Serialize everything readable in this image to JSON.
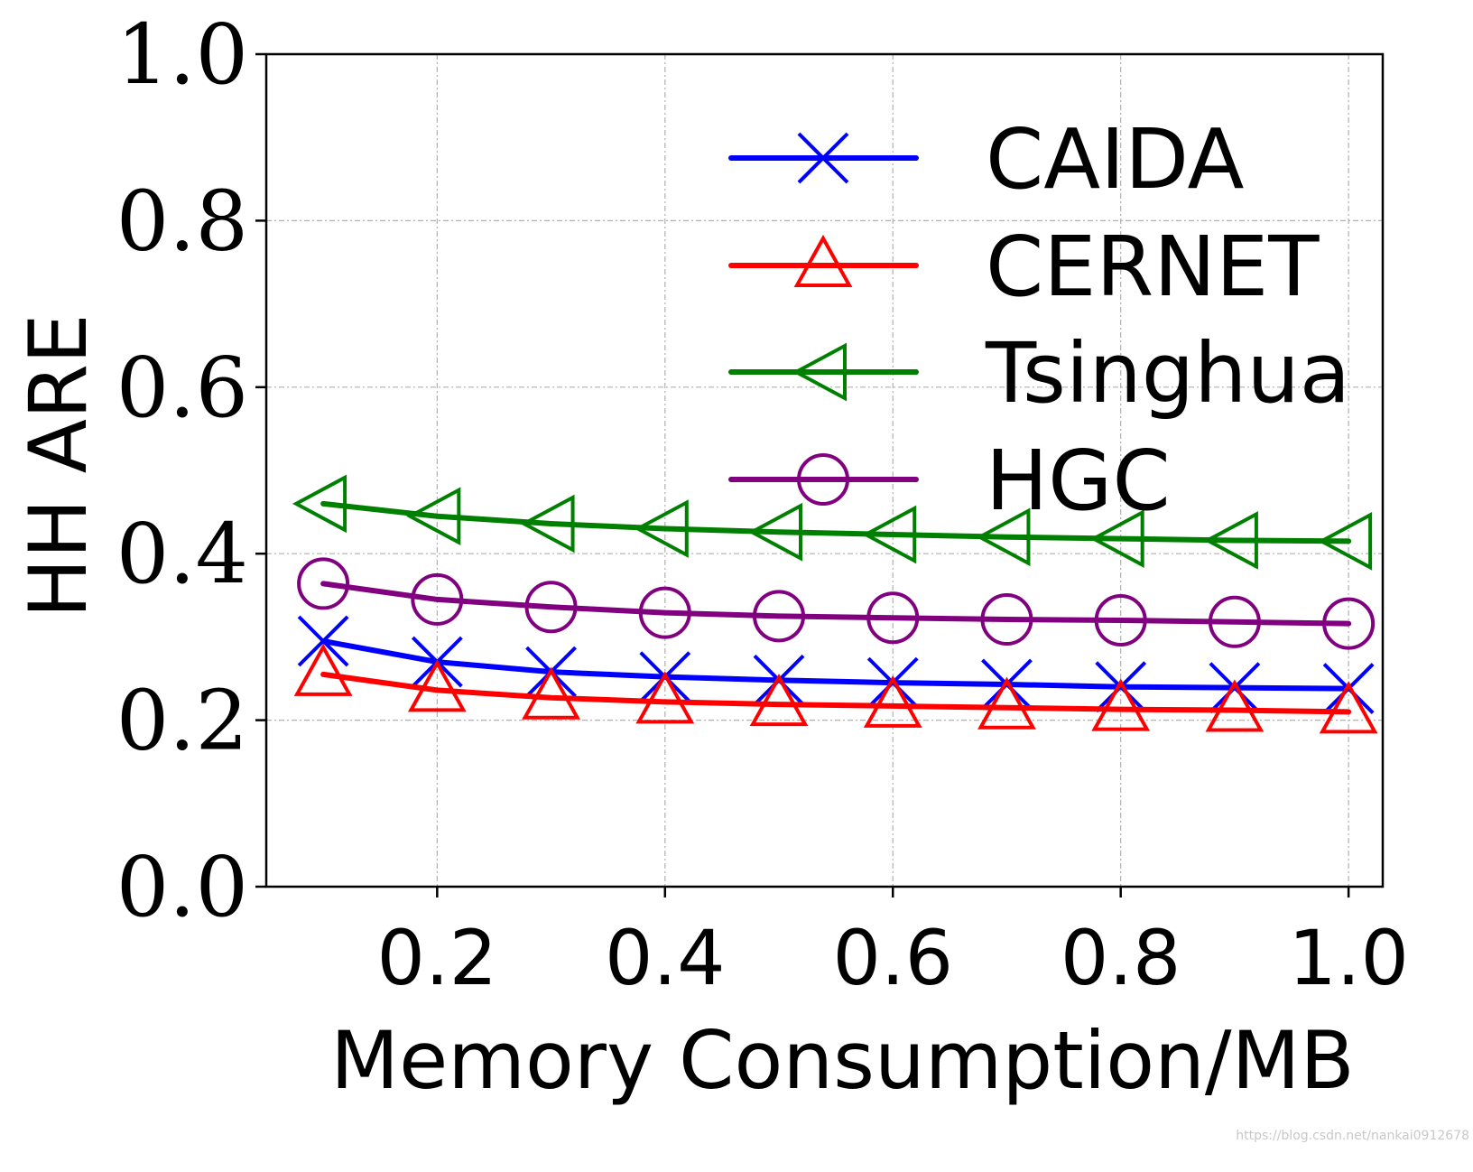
{
  "chart_data": {
    "type": "line",
    "xlabel": "Memory Consumption/MB",
    "ylabel": "HH ARE",
    "xlim": [
      0.05,
      1.03
    ],
    "ylim": [
      0.0,
      1.0
    ],
    "xticks": [
      "0.2",
      "0.4",
      "0.6",
      "0.8",
      "1.0"
    ],
    "yticks": [
      "0.0",
      "0.2",
      "0.4",
      "0.6",
      "0.8",
      "1.0"
    ],
    "grid": true,
    "legend_position": "top-right",
    "x": [
      0.1,
      0.2,
      0.3,
      0.4,
      0.5,
      0.6,
      0.7,
      0.8,
      0.9,
      1.0
    ],
    "series": [
      {
        "name": "CAIDA",
        "color": "#0000ff",
        "marker": "x",
        "values": [
          0.295,
          0.27,
          0.258,
          0.252,
          0.248,
          0.245,
          0.243,
          0.24,
          0.239,
          0.238
        ]
      },
      {
        "name": "CERNET",
        "color": "#ff0000",
        "marker": "triangle-up",
        "values": [
          0.255,
          0.236,
          0.227,
          0.222,
          0.219,
          0.217,
          0.215,
          0.213,
          0.212,
          0.21
        ]
      },
      {
        "name": "Tsinghua",
        "color": "#008000",
        "marker": "triangle-left",
        "values": [
          0.46,
          0.445,
          0.436,
          0.43,
          0.426,
          0.423,
          0.42,
          0.418,
          0.416,
          0.415
        ]
      },
      {
        "name": "HGC",
        "color": "#800080",
        "marker": "circle",
        "values": [
          0.364,
          0.345,
          0.336,
          0.329,
          0.325,
          0.323,
          0.321,
          0.32,
          0.318,
          0.316
        ]
      }
    ]
  },
  "watermark": "https://blog.csdn.net/nankai0912678"
}
